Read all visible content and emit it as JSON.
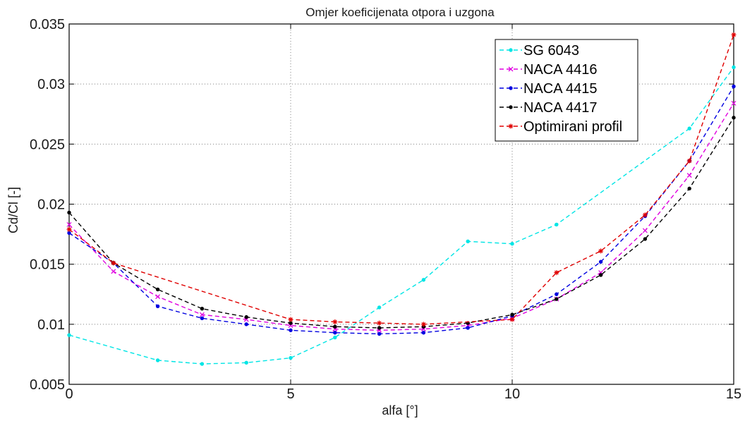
{
  "chart_data": {
    "type": "line",
    "title": "Omjer koeficijenata otpora i uzgona",
    "xlabel": "alfa [°]",
    "ylabel": "Cd/Cl [-]",
    "xlim": [
      0,
      15
    ],
    "ylim": [
      0.005,
      0.035
    ],
    "xticks": [
      "0",
      "5",
      "10",
      "15"
    ],
    "yticks": [
      "0.005",
      "0.01",
      "0.015",
      "0.02",
      "0.025",
      "0.03",
      "0.035"
    ],
    "grid": true,
    "legend_position": "top-right",
    "series": [
      {
        "name": "SG 6043",
        "color": "#00e5e5",
        "marker": "circle",
        "x": [
          0,
          2,
          3,
          4,
          5,
          6,
          7,
          8,
          9,
          10,
          11,
          14,
          15
        ],
        "y": [
          0.0091,
          0.007,
          0.0067,
          0.0068,
          0.0072,
          0.0089,
          0.0114,
          0.0137,
          0.0169,
          0.0167,
          0.0183,
          0.0263,
          0.0314
        ]
      },
      {
        "name": "NACA 4416",
        "color": "#e000e0",
        "marker": "x",
        "x": [
          0,
          1,
          2,
          3,
          4,
          5,
          6,
          7,
          8,
          9,
          10,
          11,
          12,
          13,
          14,
          15
        ],
        "y": [
          0.0183,
          0.0144,
          0.0123,
          0.0108,
          0.0104,
          0.0099,
          0.0096,
          0.0095,
          0.0096,
          0.0099,
          0.0105,
          0.0121,
          0.0143,
          0.0178,
          0.0224,
          0.0284
        ]
      },
      {
        "name": "NACA 4415",
        "color": "#0000e0",
        "marker": "circle",
        "x": [
          0,
          1,
          2,
          3,
          4,
          5,
          6,
          7,
          8,
          9,
          10,
          11,
          12,
          13,
          14,
          15
        ],
        "y": [
          0.0176,
          0.0151,
          0.0115,
          0.0105,
          0.01,
          0.0095,
          0.0093,
          0.0092,
          0.0093,
          0.0097,
          0.0107,
          0.0125,
          0.0152,
          0.019,
          0.0236,
          0.0298
        ]
      },
      {
        "name": "NACA 4417",
        "color": "#000000",
        "marker": "circle",
        "x": [
          0,
          1,
          2,
          3,
          4,
          5,
          6,
          7,
          8,
          9,
          10,
          11,
          12,
          13,
          14,
          15
        ],
        "y": [
          0.0193,
          0.0151,
          0.0129,
          0.0113,
          0.0106,
          0.0101,
          0.0098,
          0.0097,
          0.0098,
          0.0101,
          0.0108,
          0.0121,
          0.0141,
          0.0171,
          0.0213,
          0.0272
        ]
      },
      {
        "name": "Optimirani profil",
        "color": "#e00000",
        "marker": "star",
        "x": [
          0,
          1,
          5,
          6,
          7,
          8,
          10,
          11,
          12,
          13,
          14,
          15
        ],
        "y": [
          0.0179,
          0.0151,
          0.0104,
          0.0102,
          0.0101,
          0.01,
          0.0104,
          0.0143,
          0.0161,
          0.0191,
          0.0236,
          0.0341
        ]
      }
    ]
  }
}
